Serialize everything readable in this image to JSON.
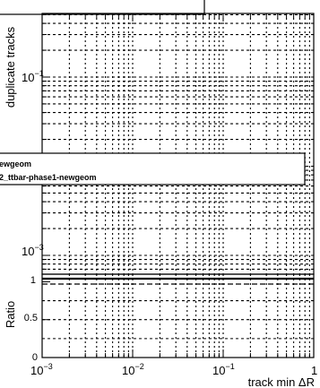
{
  "chart_data": [
    {
      "panel": "top",
      "type": "line",
      "ylabel": "duplicate tracks",
      "yscale": "log",
      "xscale": "log",
      "ytick_labels": [
        "10^{-1}",
        "10^{-3}"
      ],
      "legend": {
        "placement": "middle-left",
        "entries": [
          "ewgeom",
          "2_ttbar-phase1-newgeom"
        ]
      },
      "grid": true,
      "series": []
    },
    {
      "panel": "ratio",
      "type": "line",
      "ylabel": "Ratio",
      "xlabel": "track min ΔR",
      "xscale": "log",
      "xlim": [
        0.001,
        1
      ],
      "ylim": [
        0,
        1.1
      ],
      "ytick_labels": [
        "0",
        "0.5",
        "1"
      ],
      "xtick_labels": [
        "10^{-3}",
        "10^{-2}",
        "10^{-1}",
        "1"
      ],
      "reference_line": 1,
      "grid": true,
      "series": []
    }
  ],
  "labels": {
    "top_ylabel": "duplicate tracks",
    "ratio_ylabel": "Ratio",
    "xlabel": "track min ΔR",
    "legend_1": "ewgeom",
    "legend_2": "2_ttbar-phase1-newgeom",
    "ytick_top_1": "10",
    "ytick_top_1_exp": "−1",
    "ytick_top_2": "10",
    "ytick_top_2_exp": "−3",
    "ytick_ratio_1": "1",
    "ytick_ratio_05": "0.5",
    "ytick_ratio_0": "0",
    "xtick_1_base": "10",
    "xtick_1_exp": "−3",
    "xtick_2_base": "10",
    "xtick_2_exp": "−2",
    "xtick_3_base": "10",
    "xtick_3_exp": "−1",
    "xtick_4": "1"
  }
}
